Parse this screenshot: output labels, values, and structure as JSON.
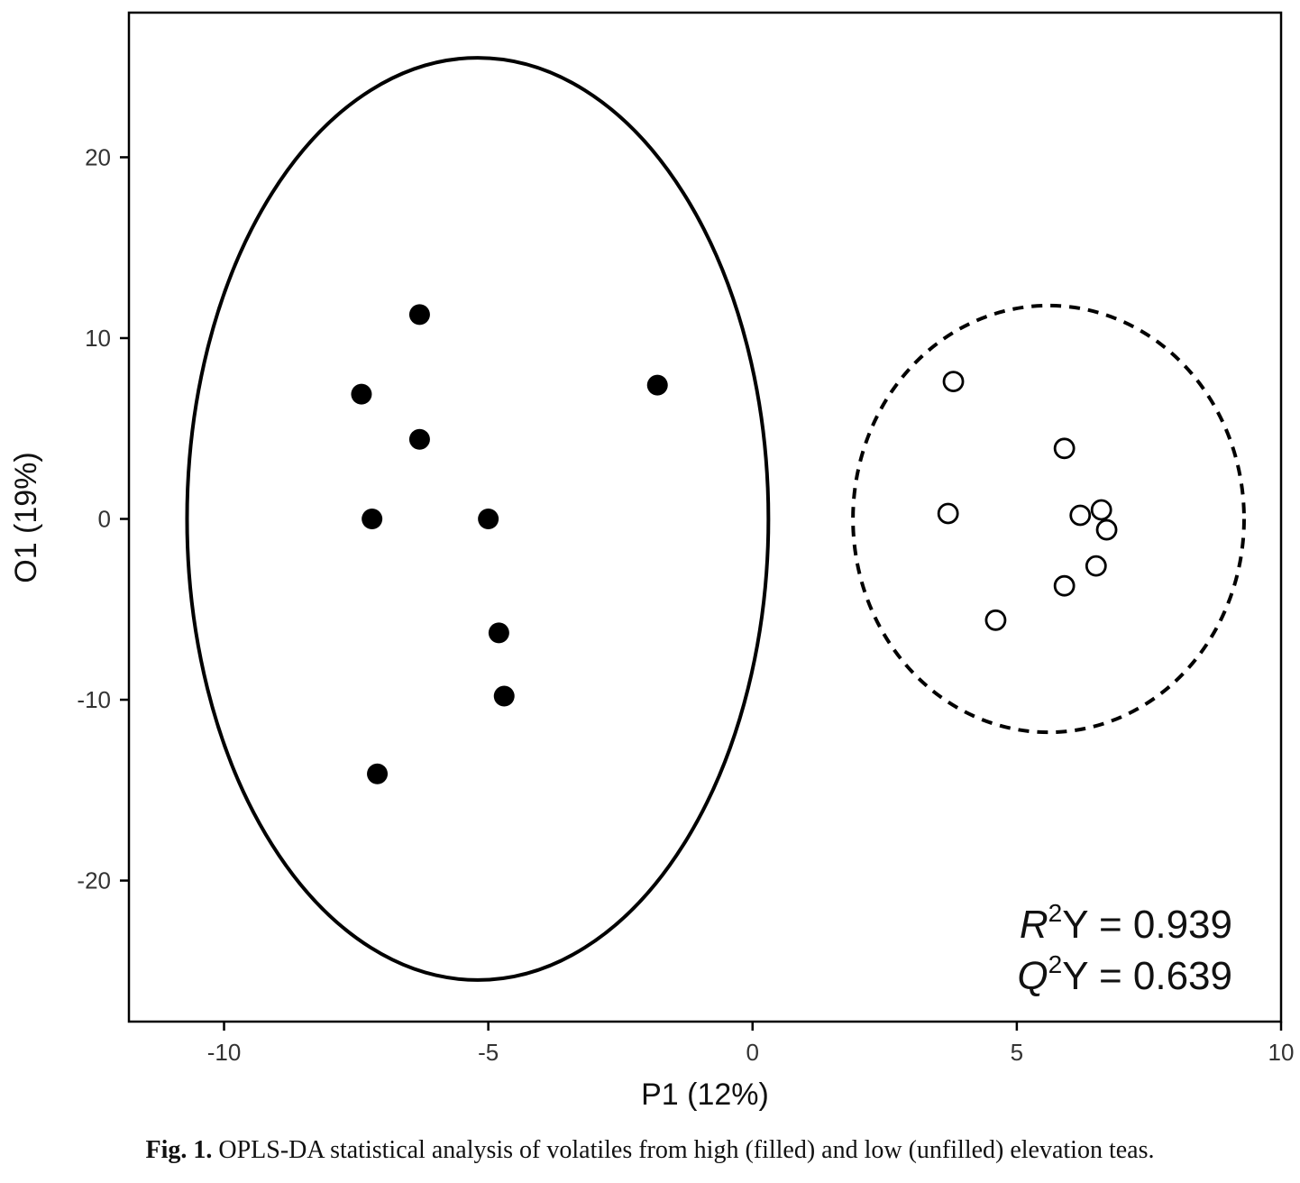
{
  "chart_data": {
    "type": "scatter",
    "xlabel": "P1 (12%)",
    "ylabel": "O1 (19%)",
    "xlim": [
      -11.8,
      10.0
    ],
    "ylim": [
      -27.8,
      28.0
    ],
    "xticks": [
      -10,
      -5,
      0,
      5,
      10
    ],
    "yticks": [
      -20,
      -10,
      0,
      10,
      20
    ],
    "grid": false,
    "series": [
      {
        "marker": "filled-circle",
        "color": "#000000",
        "points": [
          {
            "x": -6.3,
            "y": 11.3
          },
          {
            "x": -7.4,
            "y": 6.9
          },
          {
            "x": -1.8,
            "y": 7.4
          },
          {
            "x": -6.3,
            "y": 4.4
          },
          {
            "x": -7.2,
            "y": 0.0
          },
          {
            "x": -5.0,
            "y": 0.0
          },
          {
            "x": -4.8,
            "y": -6.3
          },
          {
            "x": -4.7,
            "y": -9.8
          },
          {
            "x": -7.1,
            "y": -14.1
          }
        ],
        "ellipse": {
          "cx": -5.2,
          "cy": 0.0,
          "rx": 5.5,
          "ry": 25.5,
          "style": "solid"
        }
      },
      {
        "marker": "open-circle",
        "color": "#000000",
        "points": [
          {
            "x": 3.8,
            "y": 7.6
          },
          {
            "x": 5.9,
            "y": 3.9
          },
          {
            "x": 3.7,
            "y": 0.3
          },
          {
            "x": 6.2,
            "y": 0.2
          },
          {
            "x": 6.6,
            "y": 0.5
          },
          {
            "x": 6.7,
            "y": -0.6
          },
          {
            "x": 6.5,
            "y": -2.6
          },
          {
            "x": 5.9,
            "y": -3.7
          },
          {
            "x": 4.6,
            "y": -5.6
          }
        ],
        "ellipse": {
          "cx": 5.6,
          "cy": 0.0,
          "rx": 3.7,
          "ry": 11.8,
          "style": "dashed"
        }
      }
    ],
    "annotations": {
      "r2_symbol": "R",
      "r2_sup": "2",
      "r2_suffix": "Y = 0.939",
      "q2_symbol": "Q",
      "q2_sup": "2",
      "q2_suffix": "Y = 0.639"
    }
  },
  "caption": {
    "label": "Fig. 1.",
    "text": "OPLS-DA statistical analysis of volatiles from high (filled) and low (unfilled) elevation teas."
  }
}
